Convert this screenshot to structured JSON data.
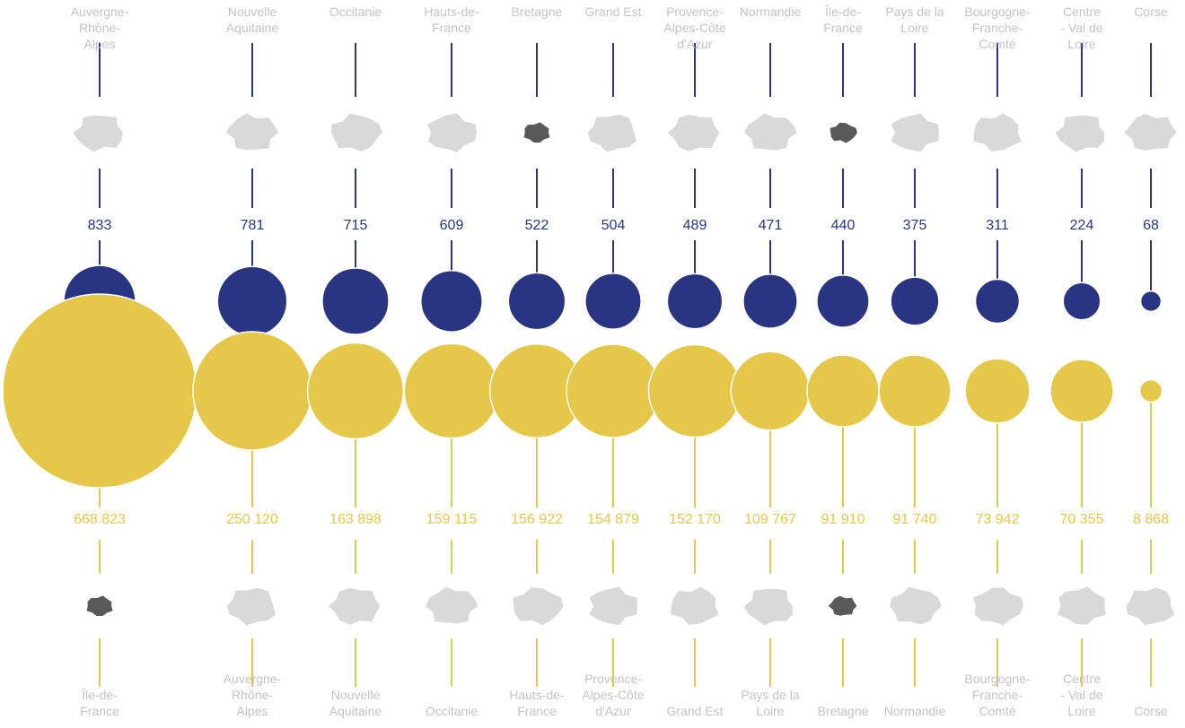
{
  "chart_data": [
    {
      "type": "bubble",
      "rank_order": "descending",
      "categories": [
        "Auvergne-Rhône-Alpes",
        "Nouvelle Aquitaine",
        "Occitanie",
        "Hauts-de-France",
        "Bretagne",
        "Grand Est",
        "Provence-Alpes-Côte d'Azur",
        "Normandie",
        "Île-de-France",
        "Pays de la Loire",
        "Bourgogne-Franche-Comté",
        "Centre - Val de Loire",
        "Corse"
      ],
      "label_lines": [
        [
          "Auvergne-",
          "Rhône-",
          "Alpes"
        ],
        [
          "Nouvelle",
          "Aquitaine"
        ],
        [
          "Occitanie"
        ],
        [
          "Hauts-de-",
          "France"
        ],
        [
          "Bretagne"
        ],
        [
          "Grand Est"
        ],
        [
          "Provence-",
          "Alpes-Côte",
          "d'Azur"
        ],
        [
          "Normandie"
        ],
        [
          "Île-de-",
          "France"
        ],
        [
          "Pays de la",
          "Loire"
        ],
        [
          "Bourgogne-",
          "Franche-",
          "Comté"
        ],
        [
          "Centre",
          "- Val de",
          "Loire"
        ],
        [
          "Corse"
        ]
      ],
      "values": [
        833,
        781,
        715,
        609,
        522,
        504,
        489,
        471,
        440,
        375,
        311,
        224,
        68
      ],
      "value_labels": [
        "833",
        "781",
        "715",
        "609",
        "522",
        "504",
        "489",
        "471",
        "440",
        "375",
        "311",
        "224",
        "68"
      ],
      "highlighted": [
        "Bretagne",
        "Île-de-France"
      ],
      "color": "#293583"
    },
    {
      "type": "bubble",
      "rank_order": "descending",
      "categories": [
        "Île-de-France",
        "Auvergne-Rhône-Alpes",
        "Nouvelle Aquitaine",
        "Occitanie",
        "Hauts-de-France",
        "Provence-Alpes-Côte d'Azur",
        "Grand Est",
        "Pays de la Loire",
        "Bretagne",
        "Normandie",
        "Bourgogne-Franche-Comté",
        "Centre - Val de Loire",
        "Corse"
      ],
      "label_lines": [
        [
          "Île-de-",
          "France"
        ],
        [
          "Auvergne-",
          "Rhône-",
          "Alpes"
        ],
        [
          "Nouvelle",
          "Aquitaine"
        ],
        [
          "Occitanie"
        ],
        [
          "Hauts-de-",
          "France"
        ],
        [
          "Provence-",
          "Alpes-Côte",
          "d'Azur"
        ],
        [
          "Grand Est"
        ],
        [
          "Pays de la",
          "Loire"
        ],
        [
          "Bretagne"
        ],
        [
          "Normandie"
        ],
        [
          "Bourgogne-",
          "Franche-",
          "Comté"
        ],
        [
          "Centre",
          "- Val de",
          "Loire"
        ],
        [
          "Corse"
        ]
      ],
      "values": [
        668823,
        250120,
        163898,
        159115,
        156922,
        154879,
        152170,
        109767,
        91910,
        91740,
        73942,
        70355,
        8868
      ],
      "value_labels": [
        "668 823",
        "250 120",
        "163 898",
        "159 115",
        "156 922",
        "154 879",
        "152 170",
        "109 767",
        "91 910",
        "91 740",
        "73 942",
        "70 355",
        "8 868"
      ],
      "highlighted": [
        "Île-de-France",
        "Bretagne"
      ],
      "color": "#e5c84a"
    }
  ],
  "colors": {
    "blue": "#293583",
    "yellow": "#e5c84a",
    "map_gray": "#d9d9d9",
    "map_highlight": "#595959",
    "label_gray": "#c4c4c4"
  }
}
